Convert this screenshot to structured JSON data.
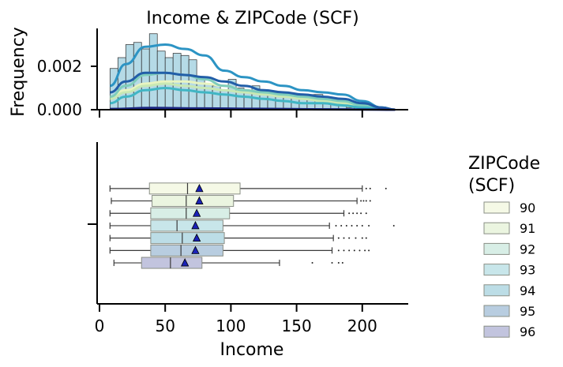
{
  "chart_data": [
    {
      "type": "histogram",
      "title": "Income & ZIPCode (SCF)",
      "ylabel": "Frequency",
      "xlim": [
        -2,
        235
      ],
      "ylim": [
        0,
        0.0037
      ],
      "y_ticks": [
        {
          "value": 0.0,
          "label": "0.000"
        },
        {
          "value": 0.002,
          "label": "0.002"
        }
      ],
      "x_ticks": [
        0,
        50,
        100,
        150,
        200
      ],
      "hue_order": [
        "90",
        "91",
        "92",
        "93",
        "94",
        "95",
        "96"
      ],
      "bin_width": 6,
      "bins_start": 8,
      "bin_heights": [
        0.0019,
        0.0024,
        0.003,
        0.0031,
        0.0028,
        0.0035,
        0.0027,
        0.0024,
        0.0026,
        0.0025,
        0.0023,
        0.0015,
        0.0012,
        0.0011,
        0.0009,
        0.0014,
        0.001,
        0.0009,
        0.0011,
        0.0007,
        0.0008,
        0.0007,
        0.0006,
        0.0006,
        0.0005,
        0.0007,
        0.0007,
        0.0005,
        0.0004,
        0.0002,
        0.0001,
        0.0001
      ],
      "kde": [
        {
          "name": "90",
          "color": "#e8f4c0",
          "x": [
            8,
            20,
            35,
            50,
            65,
            80,
            95,
            110,
            125,
            140,
            155,
            170,
            185,
            200,
            215,
            225
          ],
          "y": [
            0.0006,
            0.0009,
            0.0012,
            0.0013,
            0.0013,
            0.0012,
            0.0011,
            0.0009,
            0.0008,
            0.0007,
            0.0006,
            0.0005,
            0.0004,
            0.00025,
            0.0001,
            0.0
          ]
        },
        {
          "name": "91",
          "color": "#c8e8b4",
          "x": [
            8,
            20,
            35,
            50,
            65,
            80,
            95,
            110,
            125,
            140,
            155,
            170,
            185,
            200,
            215,
            225
          ],
          "y": [
            0.0005,
            0.0008,
            0.0011,
            0.0012,
            0.0011,
            0.001,
            0.0009,
            0.0008,
            0.0007,
            0.0006,
            0.0005,
            0.0004,
            0.0003,
            0.0002,
            0.0001,
            0.0
          ]
        },
        {
          "name": "92",
          "color": "#7fcdbb",
          "x": [
            8,
            20,
            35,
            50,
            65,
            80,
            95,
            110,
            125,
            140,
            155,
            170,
            185,
            200,
            215,
            225
          ],
          "y": [
            0.0006,
            0.0011,
            0.0016,
            0.0017,
            0.0016,
            0.0014,
            0.0011,
            0.0009,
            0.0008,
            0.0007,
            0.0006,
            0.0005,
            0.0004,
            0.0002,
            0.0001,
            0.0
          ]
        },
        {
          "name": "93",
          "color": "#41b6c4",
          "x": [
            8,
            20,
            35,
            50,
            65,
            80,
            95,
            110,
            125,
            140,
            155,
            170,
            185,
            200,
            215,
            225
          ],
          "y": [
            0.0003,
            0.0006,
            0.0009,
            0.001,
            0.0009,
            0.0008,
            0.0007,
            0.0006,
            0.0005,
            0.0004,
            0.0003,
            0.0003,
            0.0002,
            0.0001,
            5e-05,
            0.0
          ]
        },
        {
          "name": "94",
          "color": "#2c94c4",
          "x": [
            8,
            20,
            35,
            50,
            65,
            80,
            95,
            110,
            125,
            140,
            155,
            170,
            185,
            200,
            215,
            225
          ],
          "y": [
            0.0011,
            0.0021,
            0.0029,
            0.003,
            0.0028,
            0.0025,
            0.0018,
            0.0015,
            0.0013,
            0.0011,
            0.0009,
            0.0008,
            0.0007,
            0.0004,
            0.0001,
            0.0
          ]
        },
        {
          "name": "95",
          "color": "#225ea8",
          "x": [
            8,
            20,
            35,
            50,
            65,
            80,
            95,
            110,
            125,
            140,
            155,
            170,
            185,
            200,
            215,
            225
          ],
          "y": [
            0.0008,
            0.0013,
            0.0017,
            0.0017,
            0.0016,
            0.0015,
            0.0013,
            0.0011,
            0.0009,
            0.0008,
            0.0007,
            0.0006,
            0.0005,
            0.0003,
            0.0001,
            0.0
          ]
        },
        {
          "name": "96",
          "color": "#1a2680",
          "x": [
            8,
            40,
            80,
            120,
            160,
            200,
            225
          ],
          "y": [
            3e-05,
            8e-05,
            6e-05,
            4e-05,
            2e-05,
            1e-05,
            0.0
          ]
        }
      ]
    },
    {
      "type": "box",
      "xlabel": "Income",
      "xlim": [
        -2,
        235
      ],
      "x_ticks": [
        0,
        50,
        100,
        150,
        200
      ],
      "legend_title": "ZIPCode\n(SCF)",
      "legend_placement": "right",
      "series": [
        {
          "name": "90",
          "color": "#f5f9e6",
          "whisker_low": 8,
          "q1": 38,
          "median": 67,
          "q3": 107,
          "whisker_high": 200,
          "mean": 76,
          "outliers": [
            203,
            206,
            218
          ]
        },
        {
          "name": "91",
          "color": "#ebf5e0",
          "whisker_low": 9,
          "q1": 40,
          "median": 66,
          "q3": 102,
          "whisker_high": 196,
          "mean": 76,
          "outliers": [
            199,
            201,
            203,
            206
          ]
        },
        {
          "name": "92",
          "color": "#d8eee6",
          "whisker_low": 8,
          "q1": 39,
          "median": 66,
          "q3": 99,
          "whisker_high": 186,
          "mean": 74,
          "outliers": [
            190,
            193,
            196,
            199,
            203
          ]
        },
        {
          "name": "93",
          "color": "#c8e6ea",
          "whisker_low": 8,
          "q1": 39,
          "median": 59,
          "q3": 94,
          "whisker_high": 175,
          "mean": 73,
          "outliers": [
            180,
            184,
            188,
            192,
            196,
            200,
            205,
            224
          ]
        },
        {
          "name": "94",
          "color": "#bcdde6",
          "whisker_low": 8,
          "q1": 39,
          "median": 63,
          "q3": 95,
          "whisker_high": 178,
          "mean": 74,
          "outliers": [
            182,
            186,
            190,
            195,
            200,
            203
          ]
        },
        {
          "name": "95",
          "color": "#b8cde0",
          "whisker_low": 8,
          "q1": 39,
          "median": 62,
          "q3": 94,
          "whisker_high": 177,
          "mean": 73,
          "outliers": [
            182,
            186,
            190,
            194,
            198,
            202,
            205
          ]
        },
        {
          "name": "96",
          "color": "#c2c4de",
          "whisker_low": 11,
          "q1": 32,
          "median": 54,
          "q3": 78,
          "whisker_high": 137,
          "mean": 65,
          "outliers": [
            162,
            177,
            182,
            185
          ]
        }
      ]
    }
  ]
}
